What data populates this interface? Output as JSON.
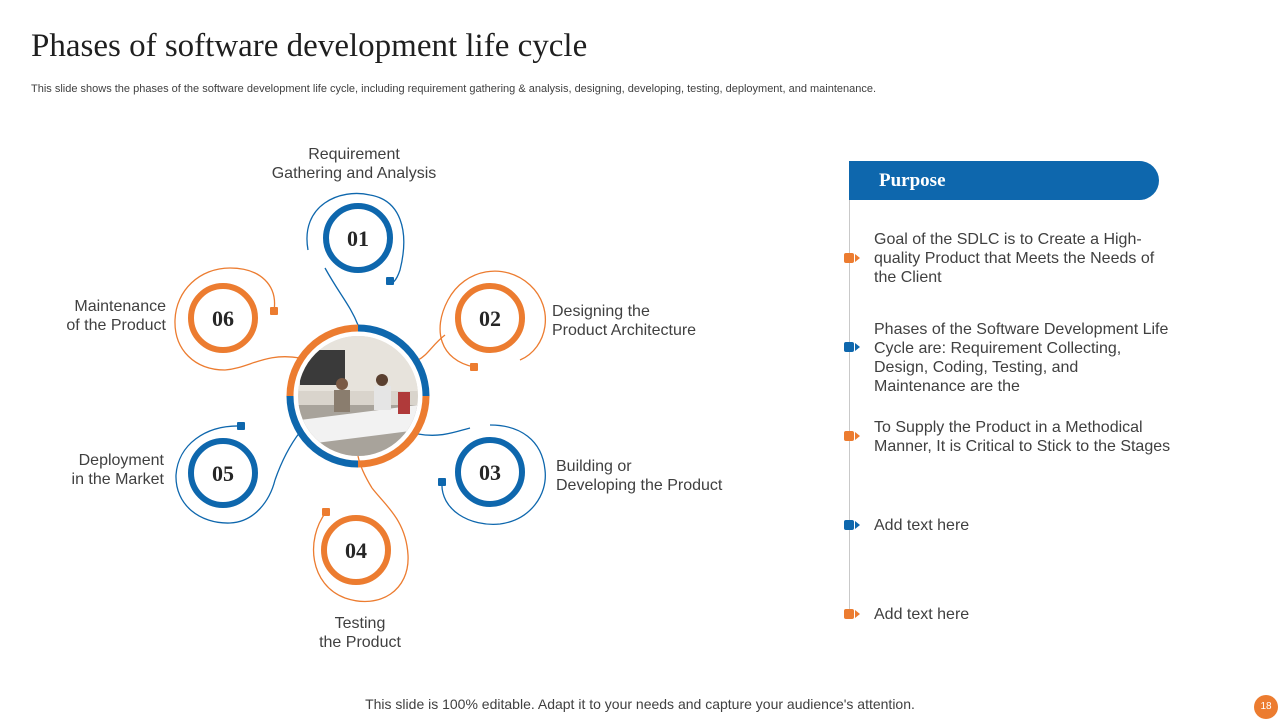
{
  "title": "Phases of software development life cycle",
  "subtitle": "This slide shows the phases of the software development life cycle, including requirement gathering & analysis, designing, developing, testing, deployment, and maintenance.",
  "colors": {
    "blue": "#0e67ad",
    "orange": "#ec7c30",
    "grey_line": "#c9c9c9"
  },
  "phases": [
    {
      "num": "01",
      "label": [
        "Requirement",
        "Gathering and Analysis"
      ],
      "color": "blue"
    },
    {
      "num": "02",
      "label": [
        "Designing the",
        "Product Architecture"
      ],
      "color": "orange"
    },
    {
      "num": "03",
      "label": [
        "Building or",
        "Developing the Product"
      ],
      "color": "blue"
    },
    {
      "num": "04",
      "label": [
        "Testing",
        "the Product"
      ],
      "color": "orange"
    },
    {
      "num": "05",
      "label": [
        "Deployment",
        "in the Market"
      ],
      "color": "blue"
    },
    {
      "num": "06",
      "label": [
        "Maintenance",
        "of the Product"
      ],
      "color": "orange"
    }
  ],
  "purpose": {
    "header": "Purpose",
    "items": [
      {
        "text": "Goal of the SDLC is to Create a High-quality Product that Meets the Needs of the Client",
        "color": "orange"
      },
      {
        "text": "Phases of the Software Development Life Cycle are: Requirement Collecting, Design, Coding, Testing, and Maintenance are the",
        "color": "blue"
      },
      {
        "text": "To Supply the Product in a Methodical Manner, It is Critical to Stick to the Stages",
        "color": "orange"
      },
      {
        "text": "Add text here",
        "color": "blue"
      },
      {
        "text": "Add text here",
        "color": "orange"
      }
    ]
  },
  "footer": "This slide is 100% editable. Adapt it to your needs and capture your audience's attention.",
  "page_number": "18"
}
